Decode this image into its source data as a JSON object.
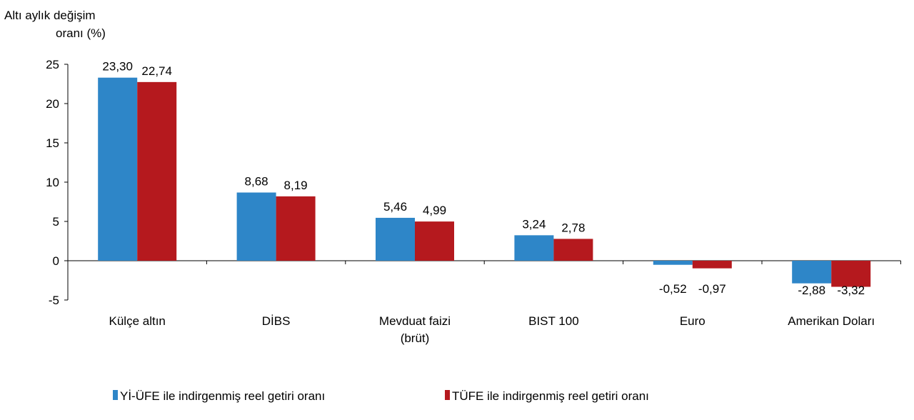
{
  "chart_data": {
    "type": "bar",
    "ylabel_lines": [
      "Altı aylık değişim",
      "oranı (%)"
    ],
    "categories": [
      [
        "Külçe altın"
      ],
      [
        "DİBS"
      ],
      [
        "Mevduat faizi",
        "(brüt)"
      ],
      [
        "BIST 100"
      ],
      [
        "Euro"
      ],
      [
        "Amerikan Doları"
      ]
    ],
    "series": [
      {
        "name": "Yİ-ÜFE ile indirgenmiş reel getiri oranı",
        "color": "#2E86C8",
        "values": [
          23.3,
          8.68,
          5.46,
          3.24,
          -0.52,
          -2.88
        ],
        "labels": [
          "23,30",
          "8,68",
          "5,46",
          "3,24",
          "-0,52",
          "-2,88"
        ]
      },
      {
        "name": "TÜFE ile indirgenmiş reel getiri oranı",
        "color": "#B5191E",
        "values": [
          22.74,
          8.19,
          4.99,
          2.78,
          -0.97,
          -3.32
        ],
        "labels": [
          "22,74",
          "8,19",
          "4,99",
          "2,78",
          "-0,97",
          "-3,32"
        ]
      }
    ],
    "ylim": [
      -5,
      25
    ],
    "yticks": [
      -5,
      0,
      5,
      10,
      15,
      20,
      25
    ],
    "grid": false,
    "legend_position": "bottom"
  }
}
